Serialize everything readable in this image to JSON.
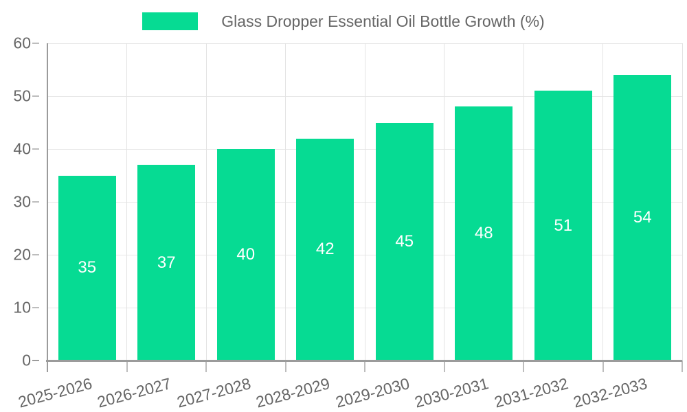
{
  "legend": {
    "label": "Glass Dropper Essential Oil Bottle Growth (%)"
  },
  "chart_data": {
    "type": "bar",
    "title": "Glass Dropper Essential Oil Bottle Growth (%)",
    "categories": [
      "2025-2026",
      "2026-2027",
      "2027-2028",
      "2028-2029",
      "2029-2030",
      "2030-2031",
      "2031-2032",
      "2032-2033"
    ],
    "values": [
      35,
      37,
      40,
      42,
      45,
      48,
      51,
      54
    ],
    "xlabel": "",
    "ylabel": "",
    "ylim": [
      0,
      60
    ],
    "yticks": [
      0,
      10,
      20,
      30,
      40,
      50,
      60
    ],
    "grid": true,
    "legend_position": "top-center",
    "x_label_rotation_deg": -15,
    "value_labels": "inside-center"
  },
  "colors": {
    "bar": "#06db93",
    "bar_label": "#ffffff",
    "axis_line": "#9b9b9b",
    "grid_line": "#e7e7e7",
    "tick_mark": "#bdbdbd",
    "text": "#666666",
    "background": "#ffffff"
  }
}
